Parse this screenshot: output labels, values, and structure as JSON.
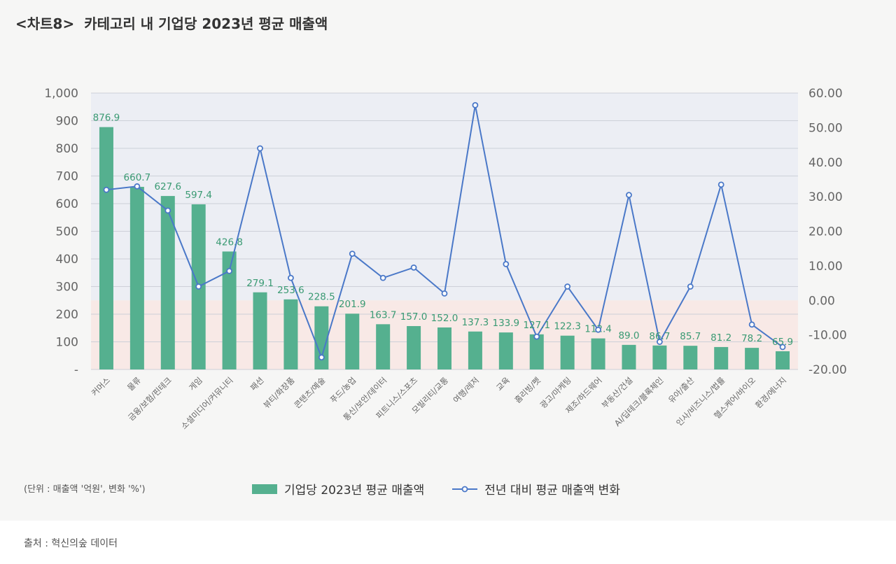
{
  "header": {
    "tag": "<차트8>",
    "title": "카테고리 내 기업당 2023년 평균 매출액"
  },
  "unit_note": "(단위 : 매출액 '억원', 변화 '%')",
  "source": "출처 : 혁신의숲 데이터",
  "colors": {
    "bar": "#55b08f",
    "line": "#4a78c8",
    "label": "#3a9a73",
    "upper_bg": "#eceef4",
    "lower_bg": "#f8e9e6"
  },
  "legend": {
    "bar_label": "기업당 2023년 평균 매출액",
    "line_label": "전년 대비 평균 매출액 변화"
  },
  "chart_data": {
    "type": "bar",
    "categories": [
      "커머스",
      "물류",
      "금융/보험/핀테크",
      "게임",
      "소셜미디어/커뮤니티",
      "패션",
      "뷰티/화장품",
      "콘텐츠/예술",
      "푸드/농업",
      "통신/보안/데이터",
      "피트니스/스포츠",
      "모빌리티/교통",
      "여행/레저",
      "교육",
      "홈리빙/펫",
      "광고/마케팅",
      "제조/하드웨어",
      "부동산/건설",
      "AI/딥테크/블록체인",
      "유아/출산",
      "인사/비즈니스/법률",
      "헬스케어/바이오",
      "환경/에너지"
    ],
    "series": [
      {
        "name": "기업당 2023년 평균 매출액",
        "type": "bar",
        "axis": "left",
        "values": [
          876.9,
          660.7,
          627.6,
          597.4,
          426.8,
          279.1,
          253.6,
          228.5,
          201.9,
          163.7,
          157.0,
          152.0,
          137.3,
          133.9,
          127.1,
          122.3,
          112.4,
          89.0,
          86.7,
          85.7,
          81.2,
          78.2,
          65.9
        ],
        "labels": [
          "876.9",
          "660.7",
          "627.6",
          "597.4",
          "426.8",
          "279.1",
          "253.6",
          "228.5",
          "201.9",
          "163.7",
          "157.0",
          "152.0",
          "137.3",
          "133.9",
          "127.1",
          "122.3",
          "112.4",
          "89.0",
          "86.7",
          "85.7",
          "81.2",
          "78.2",
          "65.9"
        ]
      },
      {
        "name": "전년 대비 평균 매출액 변화",
        "type": "line",
        "axis": "right",
        "values": [
          32.0,
          33.0,
          26.0,
          4.0,
          8.5,
          44.0,
          6.5,
          -16.5,
          13.5,
          6.5,
          9.5,
          2.0,
          56.5,
          10.5,
          -10.5,
          4.0,
          -8.5,
          30.5,
          -12.0,
          4.0,
          33.5,
          -7.0,
          -13.5
        ]
      }
    ],
    "y_left": {
      "ylim": [
        0,
        1000
      ],
      "ticks": [
        "-",
        "100",
        "200",
        "300",
        "400",
        "500",
        "600",
        "700",
        "800",
        "900",
        "1,000"
      ]
    },
    "y_right": {
      "ylim": [
        -20,
        60
      ],
      "ticks": [
        "-20.00",
        "-10.00",
        "0.00",
        "10.00",
        "20.00",
        "30.00",
        "40.00",
        "50.00",
        "60.00"
      ]
    },
    "grid": true,
    "legend_position": "bottom-center"
  }
}
